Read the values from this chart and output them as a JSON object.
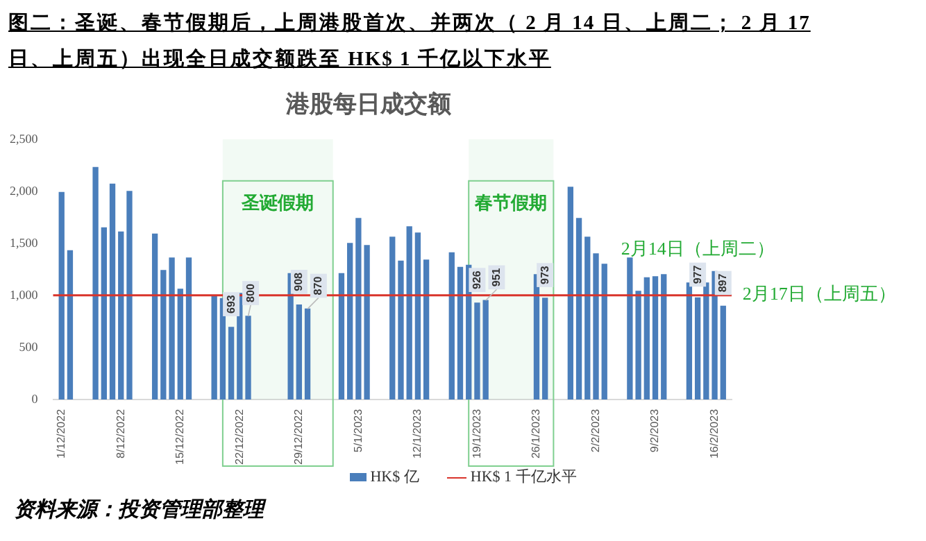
{
  "chart_data": {
    "type": "bar",
    "title": "图二：圣诞、春节假期后，上周港股首次、并两次（ 2 月 14 日、上周二； 2 月 17 日、上周五）出现全日成交额跌至 HK$ 1 千亿以下水平",
    "subtitle": "港股每日成交额",
    "x": [
      "2022-12-01",
      "2022-12-02",
      "2022-12-05",
      "2022-12-06",
      "2022-12-07",
      "2022-12-08",
      "2022-12-09",
      "2022-12-12",
      "2022-12-13",
      "2022-12-14",
      "2022-12-15",
      "2022-12-16",
      "2022-12-19",
      "2022-12-20",
      "2022-12-21",
      "2022-12-22",
      "2022-12-23",
      "2022-12-28",
      "2022-12-29",
      "2022-12-30",
      "2023-01-03",
      "2023-01-04",
      "2023-01-05",
      "2023-01-06",
      "2023-01-09",
      "2023-01-10",
      "2023-01-11",
      "2023-01-12",
      "2023-01-13",
      "2023-01-16",
      "2023-01-17",
      "2023-01-18",
      "2023-01-19",
      "2023-01-20",
      "2023-01-26",
      "2023-01-27",
      "2023-01-30",
      "2023-01-31",
      "2023-02-01",
      "2023-02-02",
      "2023-02-03",
      "2023-02-06",
      "2023-02-07",
      "2023-02-08",
      "2023-02-09",
      "2023-02-10",
      "2023-02-13",
      "2023-02-14",
      "2023-02-15",
      "2023-02-16",
      "2023-02-17"
    ],
    "series": [
      {
        "name": "HK$ 亿",
        "color": "#4a7ebb",
        "values": [
          1990,
          1430,
          2230,
          1650,
          2070,
          1610,
          2000,
          1590,
          1240,
          1360,
          1060,
          1360,
          1000,
          970,
          693,
          1020,
          800,
          1210,
          908,
          870,
          1210,
          1500,
          1740,
          1480,
          1560,
          1330,
          1660,
          1600,
          1340,
          1410,
          1270,
          1290,
          926,
          951,
          1200,
          973,
          2040,
          1740,
          1560,
          1400,
          1300,
          1360,
          1040,
          1170,
          1180,
          1200,
          1120,
          977,
          1120,
          1230,
          897
        ],
        "value_labels": [
          null,
          null,
          null,
          null,
          null,
          null,
          null,
          null,
          null,
          null,
          null,
          null,
          null,
          null,
          "693",
          null,
          "800",
          null,
          "908",
          "870",
          null,
          null,
          null,
          null,
          null,
          null,
          null,
          null,
          null,
          null,
          null,
          null,
          "926",
          "951",
          null,
          "973",
          null,
          null,
          null,
          null,
          null,
          null,
          null,
          null,
          null,
          null,
          null,
          "977",
          null,
          null,
          "897"
        ]
      }
    ],
    "xlim": [
      "2022-11-30",
      "2023-02-18"
    ],
    "xticks": [
      {
        "value": "2022-12-01",
        "label": "1/12/2022"
      },
      {
        "value": "2022-12-08",
        "label": "8/12/2022"
      },
      {
        "value": "2022-12-15",
        "label": "15/12/2022"
      },
      {
        "value": "2022-12-22",
        "label": "22/12/2022"
      },
      {
        "value": "2022-12-29",
        "label": "29/12/2022"
      },
      {
        "value": "2023-01-05",
        "label": "5/1/2023"
      },
      {
        "value": "2023-01-12",
        "label": "12/1/2023"
      },
      {
        "value": "2023-01-19",
        "label": "19/1/2023"
      },
      {
        "value": "2023-01-26",
        "label": "26/1/2023"
      },
      {
        "value": "2023-02-02",
        "label": "2/2/2023"
      },
      {
        "value": "2023-02-09",
        "label": "9/2/2023"
      },
      {
        "value": "2023-02-16",
        "label": "16/2/2023"
      }
    ],
    "ylim": [
      0,
      2500
    ],
    "yticks": [
      0,
      500,
      {
        "value": 1000,
        "label": "1,000"
      },
      {
        "value": 1500,
        "label": "1,500"
      },
      {
        "value": 2000,
        "label": "2,000"
      },
      {
        "value": 2500,
        "label": "2,500"
      }
    ],
    "ref_lines": [
      {
        "axis": "y",
        "value": 1000,
        "label": "HK$ 1 千亿水平",
        "color": "#d9342b"
      }
    ],
    "bands": [
      {
        "axis": "x",
        "from": "2022-12-20",
        "to": "2023-01-02",
        "label": "圣诞假期",
        "color": "#7fcf8f"
      },
      {
        "axis": "x",
        "from": "2023-01-18",
        "to": "2023-01-28",
        "label": "春节假期",
        "color": "#7fcf8f"
      }
    ],
    "annotations": [
      {
        "text": "2月14日（上周二）",
        "x": "2023-02-14",
        "y": 977
      },
      {
        "text": "2月17日（上周五）",
        "x": "2023-02-17",
        "y": 897
      },
      "资料来源：投资管理部整理"
    ],
    "grid": false,
    "legend": "bottom"
  }
}
